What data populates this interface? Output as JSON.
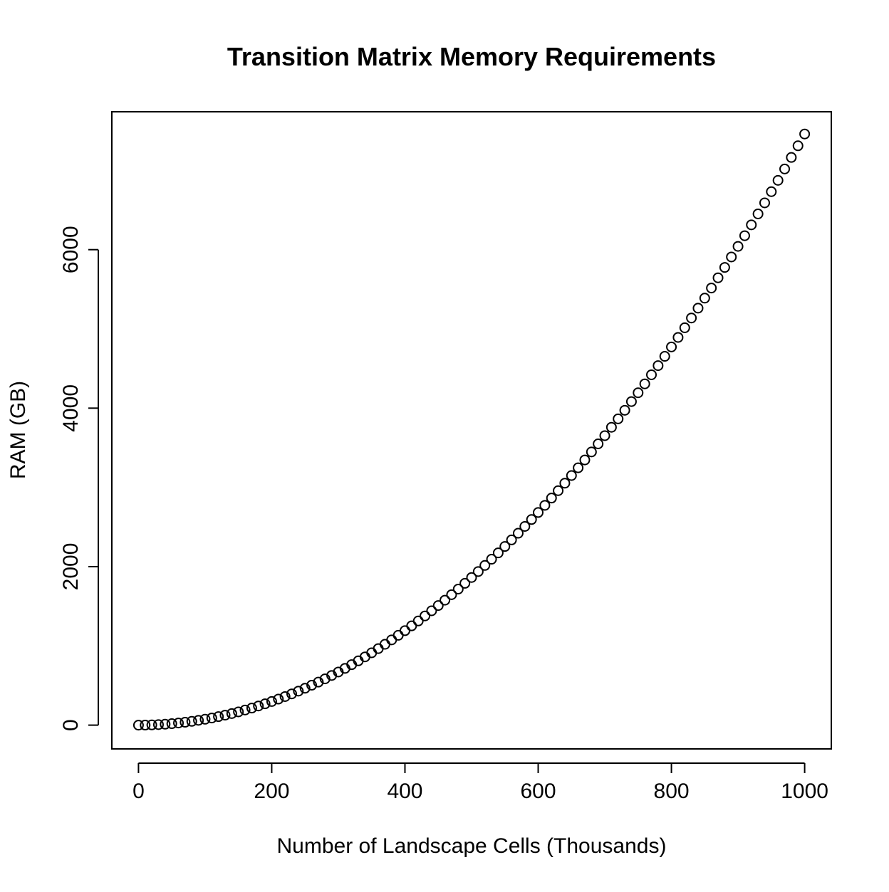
{
  "chart_data": {
    "type": "scatter",
    "title": "Transition Matrix Memory Requirements",
    "xlabel": "Number of Landscape Cells (Thousands)",
    "ylabel": "RAM (GB)",
    "xlim": [
      -40,
      1040
    ],
    "ylim": [
      -300,
      7740
    ],
    "xticks": [
      0,
      200,
      400,
      600,
      800,
      1000
    ],
    "yticks": [
      0,
      2000,
      4000,
      6000
    ],
    "grid": false,
    "legend": "none",
    "marker": "open-circle",
    "series": [
      {
        "x": [
          0,
          10,
          20,
          30,
          40,
          50,
          60,
          70,
          80,
          90,
          100,
          110,
          120,
          130,
          140,
          150,
          160,
          170,
          180,
          190,
          200,
          210,
          220,
          230,
          240,
          250,
          260,
          270,
          280,
          290,
          300,
          310,
          320,
          330,
          340,
          350,
          360,
          370,
          380,
          390,
          400,
          410,
          420,
          430,
          440,
          450,
          460,
          470,
          480,
          490,
          500,
          510,
          520,
          530,
          540,
          550,
          560,
          570,
          580,
          590,
          600,
          610,
          620,
          630,
          640,
          650,
          660,
          670,
          680,
          690,
          700,
          710,
          720,
          730,
          740,
          750,
          760,
          770,
          780,
          790,
          800,
          810,
          820,
          830,
          840,
          850,
          860,
          870,
          880,
          890,
          900,
          910,
          920,
          930,
          940,
          950,
          960,
          970,
          980,
          990,
          1000
        ],
        "y": [
          0,
          0.7,
          3.0,
          6.7,
          11.9,
          18.6,
          26.8,
          36.5,
          47.7,
          60.4,
          74.5,
          90.2,
          107.3,
          125.9,
          146.0,
          167.6,
          190.7,
          215.3,
          241.4,
          269.0,
          298.0,
          328.6,
          360.6,
          394.1,
          429.2,
          465.7,
          503.7,
          543.2,
          584.2,
          626.7,
          670.6,
          716.1,
          763.0,
          811.5,
          861.4,
          912.8,
          965.7,
          1020.1,
          1076.0,
          1133.4,
          1192.2,
          1252.6,
          1314.5,
          1377.8,
          1442.7,
          1509.0,
          1576.8,
          1646.2,
          1717.0,
          1789.3,
          1863.1,
          1938.4,
          2015.2,
          2093.5,
          2173.3,
          2254.5,
          2337.3,
          2421.6,
          2507.3,
          2594.6,
          2683.3,
          2773.6,
          2865.3,
          2958.6,
          3053.3,
          3149.5,
          3247.2,
          3346.5,
          3447.2,
          3549.4,
          3653.1,
          3758.3,
          3865.0,
          3973.2,
          4082.9,
          4194.1,
          4306.7,
          4420.9,
          4536.6,
          4653.8,
          4772.4,
          4892.6,
          5014.2,
          5137.4,
          5262.0,
          5388.2,
          5515.8,
          5644.9,
          5775.5,
          5907.6,
          6041.2,
          6176.3,
          6312.9,
          6451.0,
          6590.6,
          6731.7,
          6874.2,
          7018.3,
          7163.8,
          7310.9,
          7459.4
        ]
      }
    ]
  }
}
